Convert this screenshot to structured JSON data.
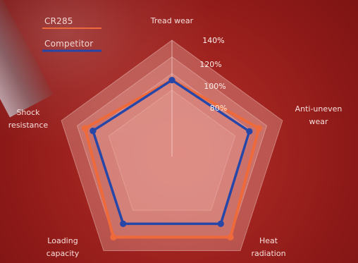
{
  "chart_data": {
    "type": "radar",
    "axes": [
      "Tread wear",
      "Anti-uneven\nwear",
      "Heat\nradiation",
      "Loading\ncapacity",
      "Shock\nresistance"
    ],
    "ticks": [
      80,
      100,
      120,
      140
    ],
    "tick_labels": [
      "80%",
      "100%",
      "120%",
      "140%"
    ],
    "series": [
      {
        "name": "CR285",
        "color": "#ef6a3a",
        "values": [
          92,
          110,
          120,
          120,
          110
        ]
      },
      {
        "name": "Competitor",
        "color": "#2747a8",
        "values": [
          92,
          98,
          100,
          100,
          100
        ]
      }
    ]
  }
}
